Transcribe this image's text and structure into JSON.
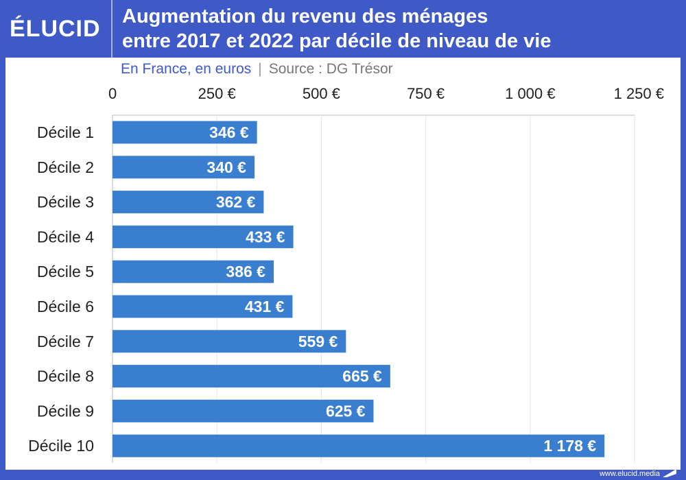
{
  "brand": {
    "logo_text": "ÉLUCID",
    "website": "www.elucid.media"
  },
  "colors": {
    "frame": "#3f5ac6",
    "bar": "#3a7fcf",
    "grid": "#e6e6e6",
    "label_outside": "#3a7fcf"
  },
  "header": {
    "title_line1": "Augmentation du revenu des ménages",
    "title_line2": "entre 2017 et 2022 par décile de niveau de vie",
    "subtitle_unit": "En France, en euros",
    "subtitle_separator": "|",
    "subtitle_source": "Source : DG Trésor"
  },
  "chart_data": {
    "type": "bar",
    "orientation": "horizontal",
    "title": "Augmentation du revenu des ménages entre 2017 et 2022 par décile de niveau de vie",
    "subtitle": "En France, en euros | Source : DG Trésor",
    "xlabel": "",
    "ylabel": "",
    "xlim": [
      0,
      1250
    ],
    "x_ticks": [
      0,
      250,
      500,
      750,
      1000,
      1250
    ],
    "x_tick_labels": [
      "0",
      "250 €",
      "500 €",
      "750 €",
      "1 000 €",
      "1 250 €"
    ],
    "x_axis_position": "top",
    "grid": true,
    "categories": [
      "Décile 1",
      "Décile 2",
      "Décile 3",
      "Décile 4",
      "Décile 5",
      "Décile 6",
      "Décile 7",
      "Décile 8",
      "Décile 9",
      "Décile 10"
    ],
    "values": [
      346,
      340,
      362,
      433,
      386,
      431,
      559,
      665,
      625,
      1178
    ],
    "value_labels": [
      "346 €",
      "340 €",
      "362 €",
      "433 €",
      "386 €",
      "431 €",
      "559 €",
      "665 €",
      "625 €",
      "1 178 €"
    ],
    "legend": "none"
  }
}
